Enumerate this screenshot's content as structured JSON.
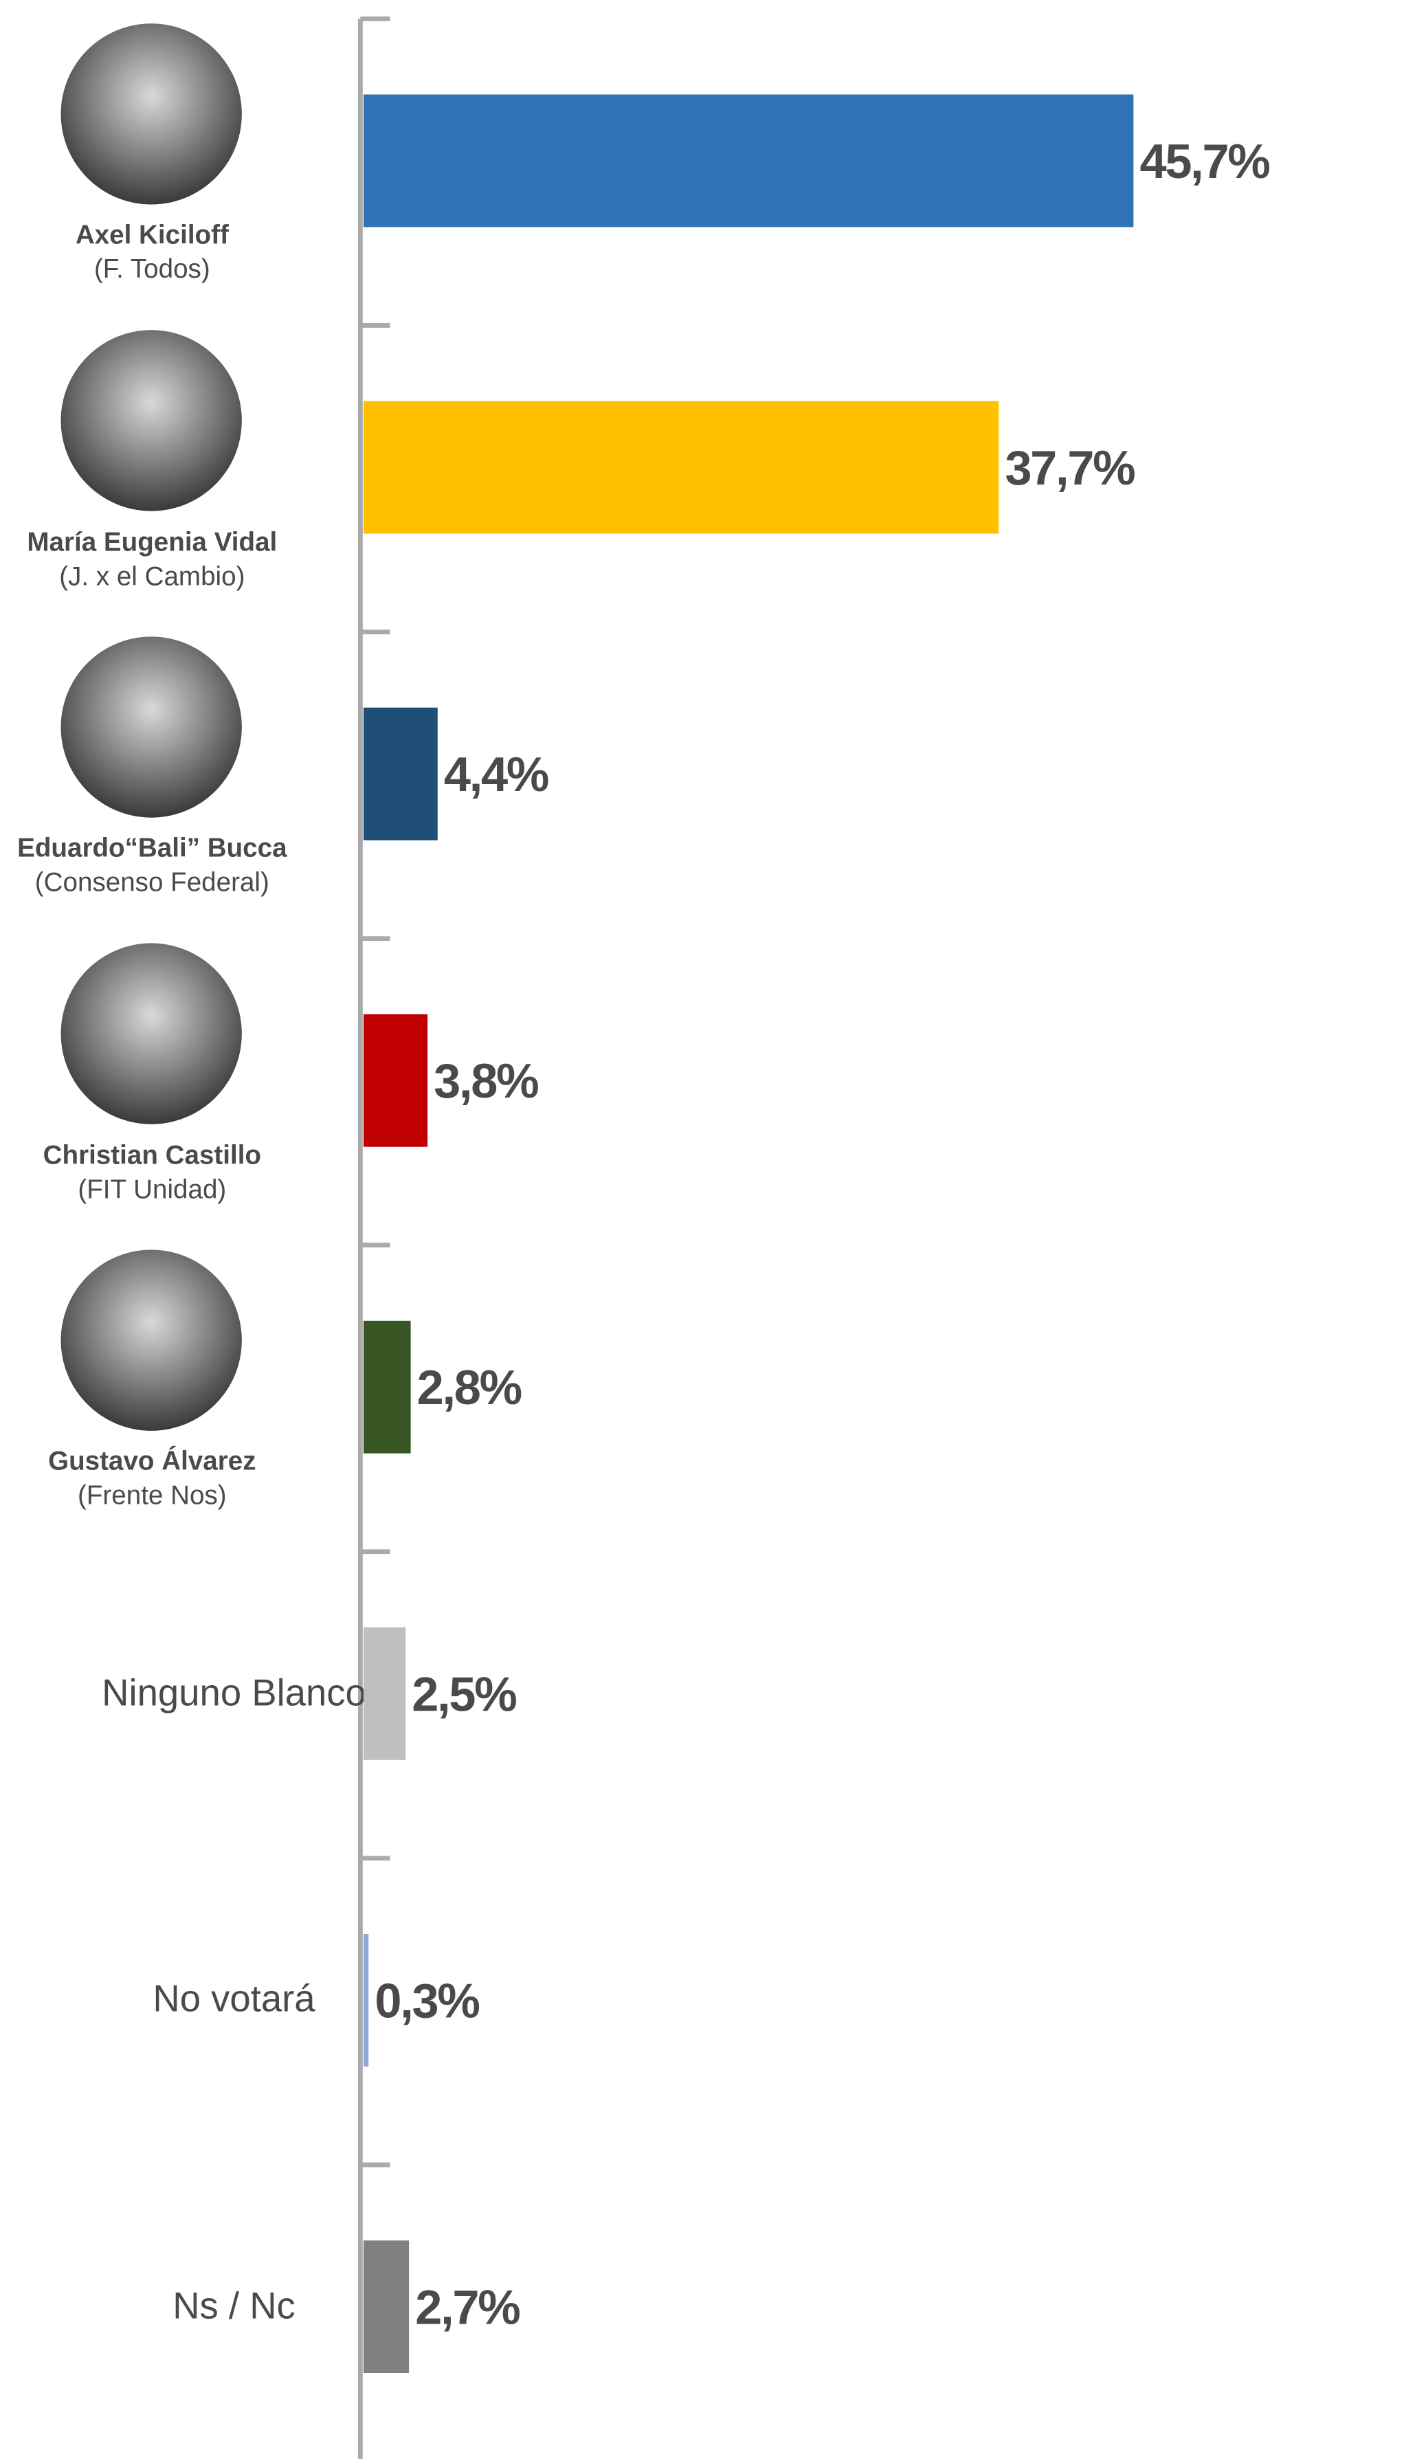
{
  "chart_data": {
    "type": "barh",
    "categories": [
      "Axel Kiciloff",
      "María Eugenia Vidal",
      "Eduardo“Bali” Bucca",
      "Christian Castillo",
      "Gustavo Álvarez",
      "Ninguno Blanco",
      "No votará",
      "Ns / Nc"
    ],
    "parties": [
      "(F. Todos)",
      "(J. x el Cambio)",
      "(Consenso Federal)",
      "(FIT Unidad)",
      "(Frente Nos)",
      null,
      null,
      null
    ],
    "values": [
      45.7,
      37.7,
      4.4,
      3.8,
      2.8,
      2.5,
      0.3,
      2.7
    ],
    "value_labels": [
      "45,7%",
      "37,7%",
      "4,4%",
      "3,8%",
      "2,8%",
      "2,5%",
      "0,3%",
      "2,7%"
    ],
    "colors": [
      "#2e74b5",
      "#ffc000",
      "#1f4e79",
      "#c00000",
      "#375623",
      "#bfbfbf",
      "#8eaadb",
      "#808080"
    ],
    "xlim": [
      0,
      55
    ]
  }
}
